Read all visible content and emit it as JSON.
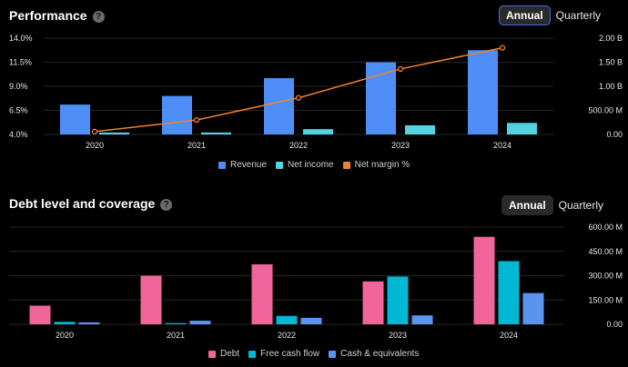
{
  "performance": {
    "title": "Performance",
    "help_icon": "question-icon",
    "toggle": {
      "annual": "Annual",
      "quarterly": "Quarterly"
    },
    "legend": [
      "Revenue",
      "Net income",
      "Net margin %"
    ]
  },
  "debt": {
    "title": "Debt level and coverage",
    "help_icon": "question-icon",
    "toggle": {
      "annual": "Annual",
      "quarterly": "Quarterly"
    },
    "legend": [
      "Debt",
      "Free cash flow",
      "Cash & equivalents"
    ]
  },
  "chart_data": [
    {
      "type": "bar",
      "title": "Performance",
      "categories": [
        "2020",
        "2021",
        "2022",
        "2023",
        "2024"
      ],
      "series": [
        {
          "name": "Revenue",
          "axis": "right",
          "values": [
            0.62,
            0.8,
            1.17,
            1.5,
            1.75
          ],
          "color": "#4d8ef7"
        },
        {
          "name": "Net income",
          "axis": "right",
          "values": [
            0.04,
            0.04,
            0.11,
            0.19,
            0.24
          ],
          "color": "#53d2e0"
        },
        {
          "name": "Net margin %",
          "type": "line",
          "axis": "left",
          "values": [
            4.3,
            5.5,
            7.8,
            10.8,
            13.0
          ],
          "color": "#f0822c"
        }
      ],
      "left_axis": {
        "ylim": [
          4.0,
          14.0
        ],
        "ticks": [
          "4.0%",
          "6.5%",
          "9.0%",
          "11.5%",
          "14.0%"
        ]
      },
      "right_axis": {
        "ylim": [
          0,
          2.0
        ],
        "unit": "B",
        "ticks": [
          "0.00",
          "500.00 M",
          "1.00 B",
          "1.50 B",
          "2.00 B"
        ]
      },
      "grid": true,
      "legend_position": "bottom"
    },
    {
      "type": "bar",
      "title": "Debt level and coverage",
      "categories": [
        "2020",
        "2021",
        "2022",
        "2023",
        "2024"
      ],
      "series": [
        {
          "name": "Debt",
          "values": [
            115,
            300,
            370,
            265,
            540
          ],
          "color": "#f0669a"
        },
        {
          "name": "Free cash flow",
          "values": [
            15,
            7,
            52,
            295,
            390
          ],
          "color": "#00b8d4"
        },
        {
          "name": "Cash & equivalents",
          "values": [
            12,
            22,
            40,
            55,
            193
          ],
          "color": "#5b93ef"
        }
      ],
      "right_axis": {
        "ylim": [
          0,
          600
        ],
        "unit": "M",
        "ticks": [
          "0.00",
          "150.00 M",
          "300.00 M",
          "450.00 M",
          "600.00 M"
        ]
      },
      "grid": true,
      "legend_position": "bottom"
    }
  ]
}
